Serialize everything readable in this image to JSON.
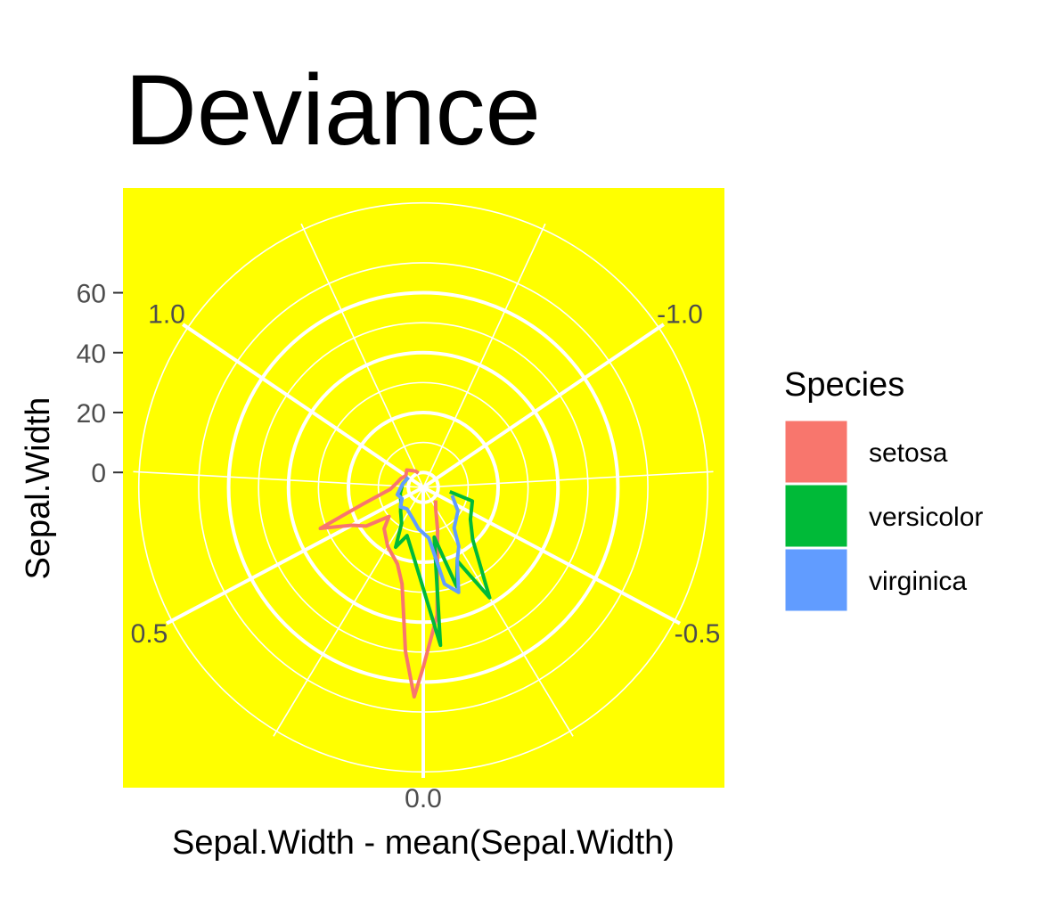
{
  "chart_data": {
    "type": "line",
    "coord": "polar",
    "title": "Deviance",
    "xlabel": "Sepal.Width - mean(Sepal.Width)",
    "ylabel": "Sepal.Width",
    "background_color": "#ffff00",
    "grid": true,
    "grid_color": "#ffffff",
    "x_range": [
      -1.45,
      1.45
    ],
    "y_range": [
      -5,
      92
    ],
    "theta_ticks": [
      {
        "value": -1.0,
        "label": "-1.0"
      },
      {
        "value": -0.5,
        "label": "-0.5"
      },
      {
        "value": 0.0,
        "label": "0.0"
      },
      {
        "value": 0.5,
        "label": "0.5"
      },
      {
        "value": 1.0,
        "label": "1.0"
      }
    ],
    "theta_minor": [
      -1.25,
      -0.75,
      -0.25,
      0.25,
      0.75,
      1.25
    ],
    "r_ticks": [
      {
        "value": 0,
        "label": "0"
      },
      {
        "value": 20,
        "label": "20"
      },
      {
        "value": 40,
        "label": "40"
      },
      {
        "value": 60,
        "label": "60"
      }
    ],
    "r_minor": [
      10,
      30,
      50,
      70,
      90
    ],
    "legend": {
      "title": "Species",
      "position": "right",
      "entries": [
        {
          "name": "setosa",
          "color": "#F8766D"
        },
        {
          "name": "versicolor",
          "color": "#00BA38"
        },
        {
          "name": "virginica",
          "color": "#619CFF"
        }
      ]
    },
    "series": [
      {
        "name": "setosa",
        "color": "#F8766D",
        "x": [
          -0.35,
          -0.25,
          -0.15,
          -0.05,
          0.0,
          0.02,
          0.05,
          0.1,
          0.15,
          0.25,
          0.35,
          0.4,
          0.45,
          0.5,
          0.55,
          0.6,
          0.7,
          0.8,
          0.9,
          1.0,
          1.1,
          1.25,
          1.3
        ],
        "y": [
          1,
          3,
          10,
          38,
          55,
          65,
          50,
          28,
          22,
          18,
          14,
          10,
          18,
          22,
          32,
          16,
          6,
          4,
          3,
          2,
          3,
          1,
          0
        ]
      },
      {
        "name": "versicolor",
        "color": "#00BA38",
        "x": [
          -0.65,
          -0.6,
          -0.45,
          -0.35,
          -0.25,
          -0.2,
          -0.15,
          -0.1,
          -0.05,
          0.05,
          0.15,
          0.2,
          0.25,
          0.35,
          0.45,
          0.6,
          0.8,
          1.0
        ],
        "y": [
          4,
          12,
          14,
          19,
          38,
          22,
          30,
          12,
          48,
          20,
          12,
          17,
          9,
          6,
          4,
          3,
          2,
          1
        ]
      },
      {
        "name": "virginica",
        "color": "#619CFF",
        "x": [
          -0.6,
          -0.45,
          -0.3,
          -0.25,
          -0.2,
          -0.15,
          -0.1,
          -0.05,
          0.05,
          0.15,
          0.3,
          0.4,
          0.5,
          0.6,
          0.8,
          1.0
        ],
        "y": [
          5,
          9,
          12,
          18,
          22,
          32,
          28,
          12,
          9,
          6,
          4,
          5,
          3,
          4,
          2,
          1
        ]
      }
    ]
  }
}
